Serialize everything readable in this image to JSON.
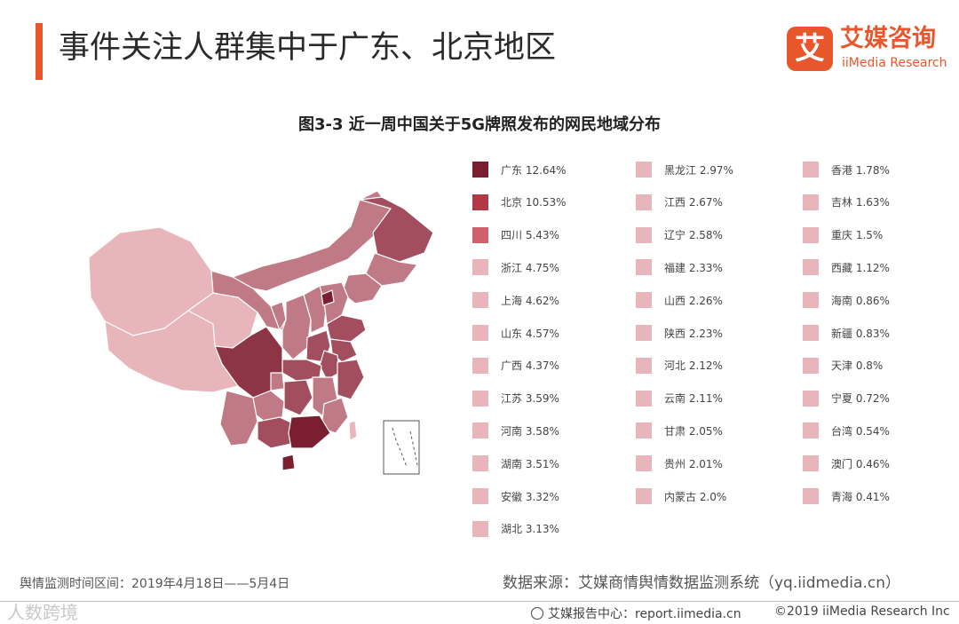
{
  "header": {
    "title": "事件关注人群集中于广东、北京地区",
    "logo_mark": "艾",
    "logo_cn": "艾媒咨询",
    "logo_en": "iiMedia Research"
  },
  "figure_title": "图3-3   近一周中国关于5G牌照发布的网民地域分布",
  "legend": {
    "col1": [
      {
        "label": "广东  12.64%",
        "color": "#7a1e30"
      },
      {
        "label": "北京  10.53%",
        "color": "#b23846"
      },
      {
        "label": "四川  5.43%",
        "color": "#d0606b"
      },
      {
        "label": "浙江  4.75%",
        "color": "#e8b5bb"
      },
      {
        "label": "上海  4.62%",
        "color": "#e8b5bb"
      },
      {
        "label": "山东  4.57%",
        "color": "#e8b5bb"
      },
      {
        "label": "广西  4.37%",
        "color": "#e8b5bb"
      },
      {
        "label": "江苏  3.59%",
        "color": "#e8b5bb"
      },
      {
        "label": "河南  3.58%",
        "color": "#e8b5bb"
      },
      {
        "label": "湖南  3.51%",
        "color": "#e8b5bb"
      },
      {
        "label": "安徽  3.32%",
        "color": "#e8b5bb"
      },
      {
        "label": "湖北  3.13%",
        "color": "#e8b5bb"
      }
    ],
    "col2": [
      {
        "label": "黑龙江  2.97%",
        "color": "#e8b5bb"
      },
      {
        "label": "江西  2.67%",
        "color": "#e8b5bb"
      },
      {
        "label": "辽宁  2.58%",
        "color": "#e8b5bb"
      },
      {
        "label": "福建  2.33%",
        "color": "#e8b5bb"
      },
      {
        "label": "山西  2.26%",
        "color": "#e8b5bb"
      },
      {
        "label": "陕西  2.23%",
        "color": "#e8b5bb"
      },
      {
        "label": "河北  2.12%",
        "color": "#e8b5bb"
      },
      {
        "label": "云南  2.11%",
        "color": "#e8b5bb"
      },
      {
        "label": "甘肃  2.05%",
        "color": "#e8b5bb"
      },
      {
        "label": "贵州  2.01%",
        "color": "#e8b5bb"
      },
      {
        "label": "内蒙古  2.0%",
        "color": "#e8b5bb"
      }
    ],
    "col3": [
      {
        "label": "香港  1.78%",
        "color": "#e8b5bb"
      },
      {
        "label": "吉林  1.63%",
        "color": "#e8b5bb"
      },
      {
        "label": "重庆  1.5%",
        "color": "#e8b5bb"
      },
      {
        "label": "西藏  1.12%",
        "color": "#e8b5bb"
      },
      {
        "label": "海南  0.86%",
        "color": "#e8b5bb"
      },
      {
        "label": "新疆  0.83%",
        "color": "#e8b5bb"
      },
      {
        "label": "天津  0.8%",
        "color": "#e8b5bb"
      },
      {
        "label": "宁夏  0.72%",
        "color": "#e8b5bb"
      },
      {
        "label": "台湾  0.54%",
        "color": "#e8b5bb"
      },
      {
        "label": "澳门  0.46%",
        "color": "#e8b5bb"
      },
      {
        "label": "青海  0.41%",
        "color": "#e8b5bb"
      }
    ]
  },
  "map_colors": {
    "base_light": "#e8b5bb",
    "mid": "#c07a86",
    "strong": "#a24e5f",
    "darkest": "#7a1e30",
    "sichuan": "#8e3545"
  },
  "footer": {
    "period": "舆情监测时间区间：2019年4月18日——5月4日",
    "source": "数据来源：艾媒商情舆情数据监测系统（yq.iidmedia.cn）",
    "watermark": "人数跨境",
    "report_center": "艾媒报告中心：report.iimedia.cn",
    "copyright": "©2019  iiMedia Research  Inc"
  }
}
